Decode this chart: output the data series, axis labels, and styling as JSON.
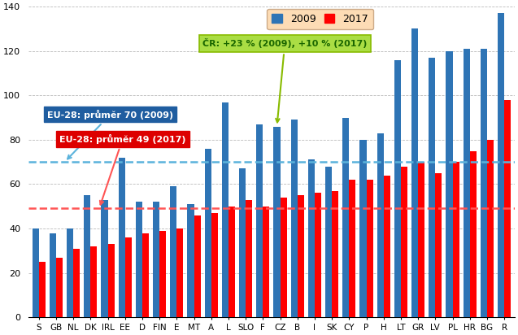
{
  "categories": [
    "S",
    "GB",
    "NL",
    "DK",
    "IRL",
    "EE",
    "D",
    "FIN",
    "E",
    "MT",
    "A",
    "L",
    "SLO",
    "F",
    "CZ",
    "B",
    "I",
    "SK",
    "CY",
    "P",
    "H",
    "LT",
    "GR",
    "LV",
    "PL",
    "HR",
    "BG",
    "R"
  ],
  "values_2009": [
    40,
    38,
    40,
    55,
    53,
    72,
    52,
    52,
    59,
    51,
    76,
    97,
    67,
    87,
    86,
    89,
    71,
    68,
    90,
    80,
    83,
    116,
    130,
    117,
    120,
    121,
    121,
    137
  ],
  "values_2017": [
    25,
    27,
    31,
    32,
    33,
    36,
    38,
    39,
    40,
    46,
    47,
    50,
    53,
    50,
    54,
    55,
    56,
    57,
    62,
    62,
    64,
    68,
    70,
    65,
    70,
    75,
    80,
    98
  ],
  "color_2009": "#2E74B5",
  "color_2017": "#FF0000",
  "hline_2009": 70,
  "hline_2017": 49,
  "hline_2009_color": "#5BB3DC",
  "hline_2017_color": "#FF5555",
  "ylim": [
    0,
    140
  ],
  "yticks": [
    0,
    20,
    40,
    60,
    80,
    100,
    120,
    140
  ],
  "eu28_2009_label": "EU-28: průměr 70 (2009)",
  "eu28_2017_label": "EU-28: průměr 49 (2017)",
  "cz_annotation": "ČR: +23 % (2009), +10 % (2017)",
  "legend_bg": "#FDDCB5",
  "annotation_bg": "#AADD44",
  "eu28_box_color": "#1F5DA0",
  "eu28_17_box_color": "#DD0000"
}
